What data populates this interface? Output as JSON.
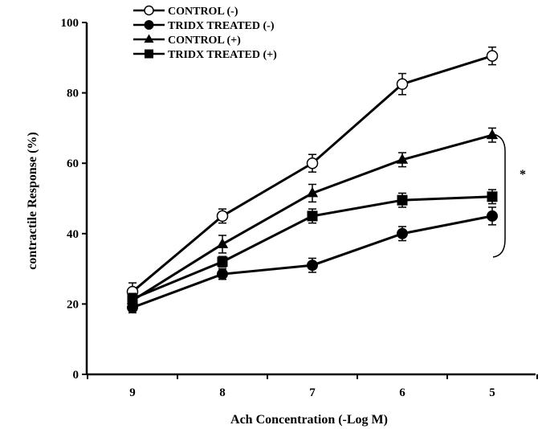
{
  "chart_data": {
    "type": "line",
    "title": "",
    "xlabel": "Ach Concentration (-Log M)",
    "ylabel": "contractile Response (%)",
    "categories": [
      "9",
      "8",
      "7",
      "6",
      "5"
    ],
    "ylim": [
      0,
      100
    ],
    "yticks": [
      "0",
      "20",
      "40",
      "60",
      "80",
      "100"
    ],
    "grid": false,
    "legend_position": "top-left",
    "series": [
      {
        "name": "CONTROL (-)",
        "marker": "open-circle",
        "values": [
          23.5,
          45,
          60,
          82.5,
          90.5
        ],
        "errors": [
          2.5,
          2,
          2.5,
          3,
          2.5
        ]
      },
      {
        "name": "TRIDX TREATED (-)",
        "marker": "filled-circle",
        "values": [
          19,
          28.5,
          31,
          40,
          45
        ],
        "errors": [
          1.5,
          1.5,
          2,
          2,
          2.5
        ]
      },
      {
        "name": "CONTROL (+)",
        "marker": "triangle",
        "values": [
          21,
          37,
          51.5,
          61,
          68
        ],
        "errors": [
          1.5,
          2.5,
          2.5,
          2,
          2
        ]
      },
      {
        "name": "TRIDX TREATED (+)",
        "marker": "square",
        "values": [
          21.5,
          32,
          45,
          49.5,
          50.5
        ],
        "errors": [
          1.5,
          1.5,
          2,
          2,
          2
        ]
      }
    ],
    "annotations": [
      {
        "text": "*"
      }
    ]
  }
}
